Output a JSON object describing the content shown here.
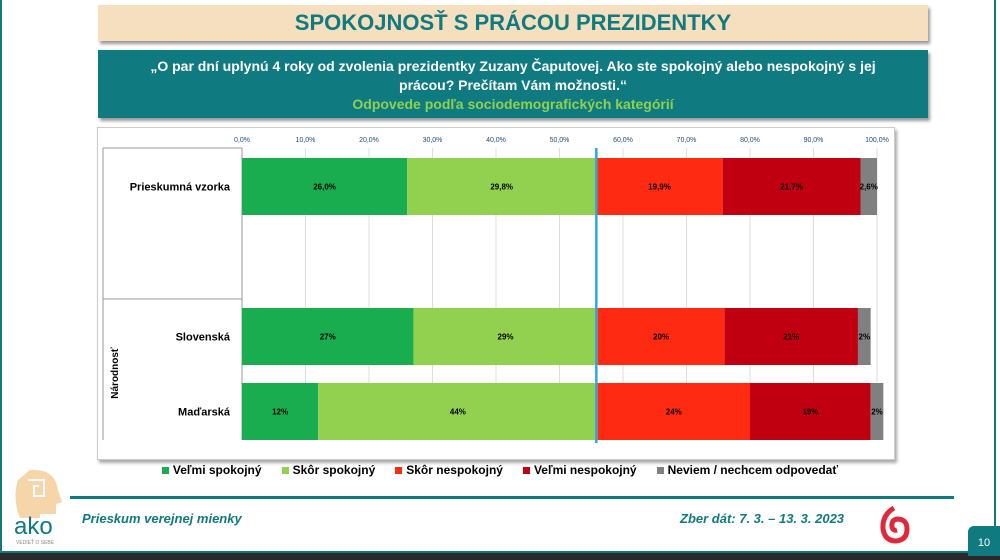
{
  "title": "SPOKOJNOSŤ S PRÁCOU PREZIDENTKY",
  "question_line1": "„O par dní uplynú 4 roky od zvolenia prezidentky Zuzany Čaputovej. Ako ste spokojný alebo nespokojný s jej",
  "question_line2": "prácou? Prečítam Vám možnosti.“",
  "subtitle": "Odpovede podľa sociodemografických kategórií",
  "footer": {
    "left": "Prieskum verejnej mienky",
    "right": "Zber dát: 7. 3. – 13. 3. 2023",
    "page": "10",
    "logo": "ako",
    "logo_tag": "VEDIEŤ O SEBE"
  },
  "chart_data": {
    "type": "bar",
    "orientation": "horizontal",
    "stacked": true,
    "xlim": [
      0,
      100
    ],
    "xticks": [
      "0,0%",
      "10,0%",
      "20,0%",
      "30,0%",
      "40,0%",
      "50,0%",
      "60,0%",
      "70,0%",
      "80,0%",
      "90,0%",
      "100,0%"
    ],
    "reference_line": 55.8,
    "group_label": "Národnosť",
    "categories": [
      "Prieskumná vzorka",
      "Slovenská",
      "Maďarská"
    ],
    "series": [
      {
        "name": "Veľmi spokojný",
        "color": "#1aad4f",
        "values": [
          26.0,
          27,
          12
        ],
        "labels": [
          "26,0%",
          "27%",
          "12%"
        ]
      },
      {
        "name": "Skôr spokojný",
        "color": "#92d050",
        "values": [
          29.8,
          29,
          44
        ],
        "labels": [
          "29,8%",
          "29%",
          "44%"
        ]
      },
      {
        "name": "Skôr nespokojný",
        "color": "#ff2a12",
        "values": [
          19.9,
          20,
          24
        ],
        "labels": [
          "19,9%",
          "20%",
          "24%"
        ]
      },
      {
        "name": "Veľmi nespokojný",
        "color": "#c00010",
        "values": [
          21.7,
          21,
          19
        ],
        "labels": [
          "21,7%",
          "21%",
          "19%"
        ]
      },
      {
        "name": "Neviem / nechcem odpovedať",
        "color": "#808080",
        "values": [
          2.6,
          2,
          2
        ],
        "labels": [
          "2,6%",
          "2%",
          "2%"
        ]
      }
    ],
    "legend": "bottom",
    "grid": true
  }
}
